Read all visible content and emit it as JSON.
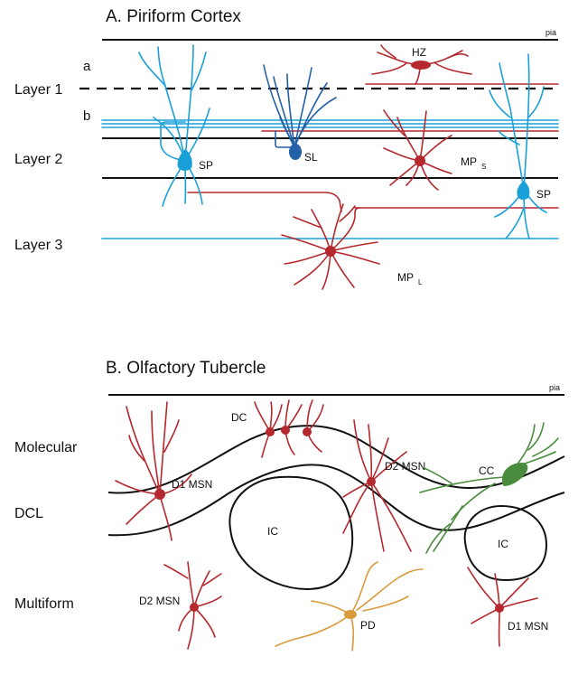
{
  "colors": {
    "sp": "#1aa0d8",
    "sl": "#2360a8",
    "red": "#b5282e",
    "green": "#4a8c3e",
    "orange": "#d99a3a",
    "line": "#111111"
  },
  "panel_a": {
    "title": "A. Piriform Cortex",
    "pia": "pia",
    "sublayer_a": "a",
    "sublayer_b": "b",
    "layers": [
      "Layer 1",
      "Layer 2",
      "Layer 3"
    ],
    "cells": {
      "hz": "HZ",
      "sl": "SL",
      "sp_left": "SP",
      "sp_right": "SP",
      "mp_s": "MP",
      "mp_s_sub": "S",
      "mp_l": "MP",
      "mp_l_sub": "L"
    }
  },
  "panel_b": {
    "title": "B. Olfactory Tubercle",
    "pia": "pia",
    "layers": [
      "Molecular",
      "DCL",
      "Multiform"
    ],
    "cells": {
      "dc": "DC",
      "d1_msn_top": "D1 MSN",
      "d2_msn_top": "D2 MSN",
      "cc": "CC",
      "ic_left": "IC",
      "ic_right": "IC",
      "d2_msn_bottom": "D2 MSN",
      "pd": "PD",
      "d1_msn_bottom": "D1 MSN"
    }
  }
}
